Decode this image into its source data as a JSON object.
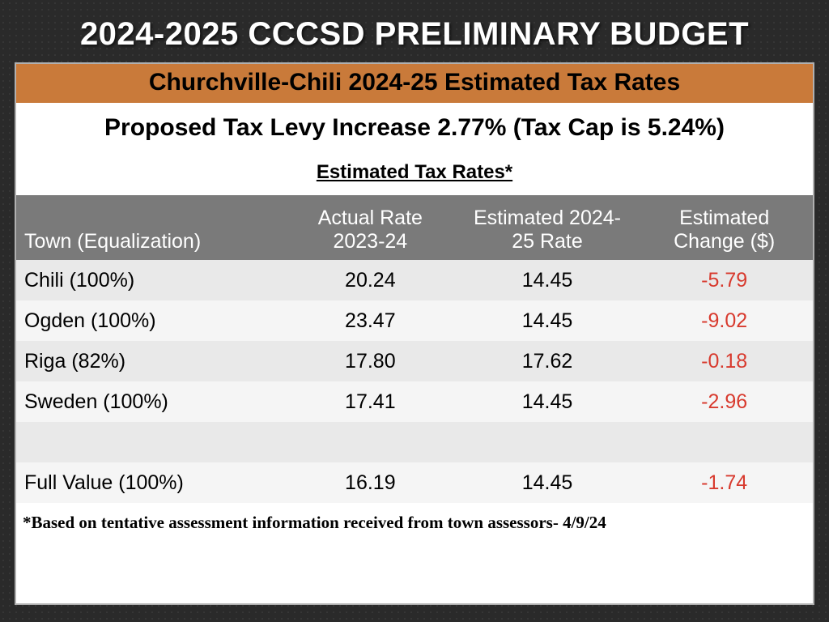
{
  "title": "2024-2025 CCCSD PRELIMINARY BUDGET",
  "banner": "Churchville-Chili  2024-25 Estimated Tax Rates",
  "levy_line": "Proposed Tax Levy Increase 2.77% (Tax Cap is 5.24%)",
  "rates_title": "Estimated Tax Rates*",
  "table": {
    "headers": {
      "town": "Town (Equalization)",
      "actual": "Actual Rate 2023-24",
      "estimated": "Estimated 2024-25 Rate",
      "change": "Estimated Change ($)"
    },
    "rows": [
      {
        "town": "Chili (100%)",
        "actual": "20.24",
        "estimated": "14.45",
        "change": "-5.79",
        "neg": true
      },
      {
        "town": "Ogden (100%)",
        "actual": "23.47",
        "estimated": "14.45",
        "change": "-9.02",
        "neg": true
      },
      {
        "town": "Riga (82%)",
        "actual": "17.80",
        "estimated": "17.62",
        "change": "-0.18",
        "neg": true
      },
      {
        "town": "Sweden (100%)",
        "actual": "17.41",
        "estimated": "14.45",
        "change": "-2.96",
        "neg": true
      },
      {
        "town": "",
        "actual": "",
        "estimated": "",
        "change": "",
        "neg": false
      },
      {
        "town": "Full Value (100%)",
        "actual": "16.19",
        "estimated": "14.45",
        "change": "-1.74",
        "neg": true
      }
    ]
  },
  "footnote": "*Based on tentative assessment information received from town assessors- 4/9/24",
  "colors": {
    "banner_bg": "#c97a3a",
    "header_bg": "#7a7a7a",
    "row_even": "#e9e9e9",
    "row_odd": "#f5f5f5",
    "negative": "#d83a2e",
    "page_bg": "#2a2a2a"
  }
}
